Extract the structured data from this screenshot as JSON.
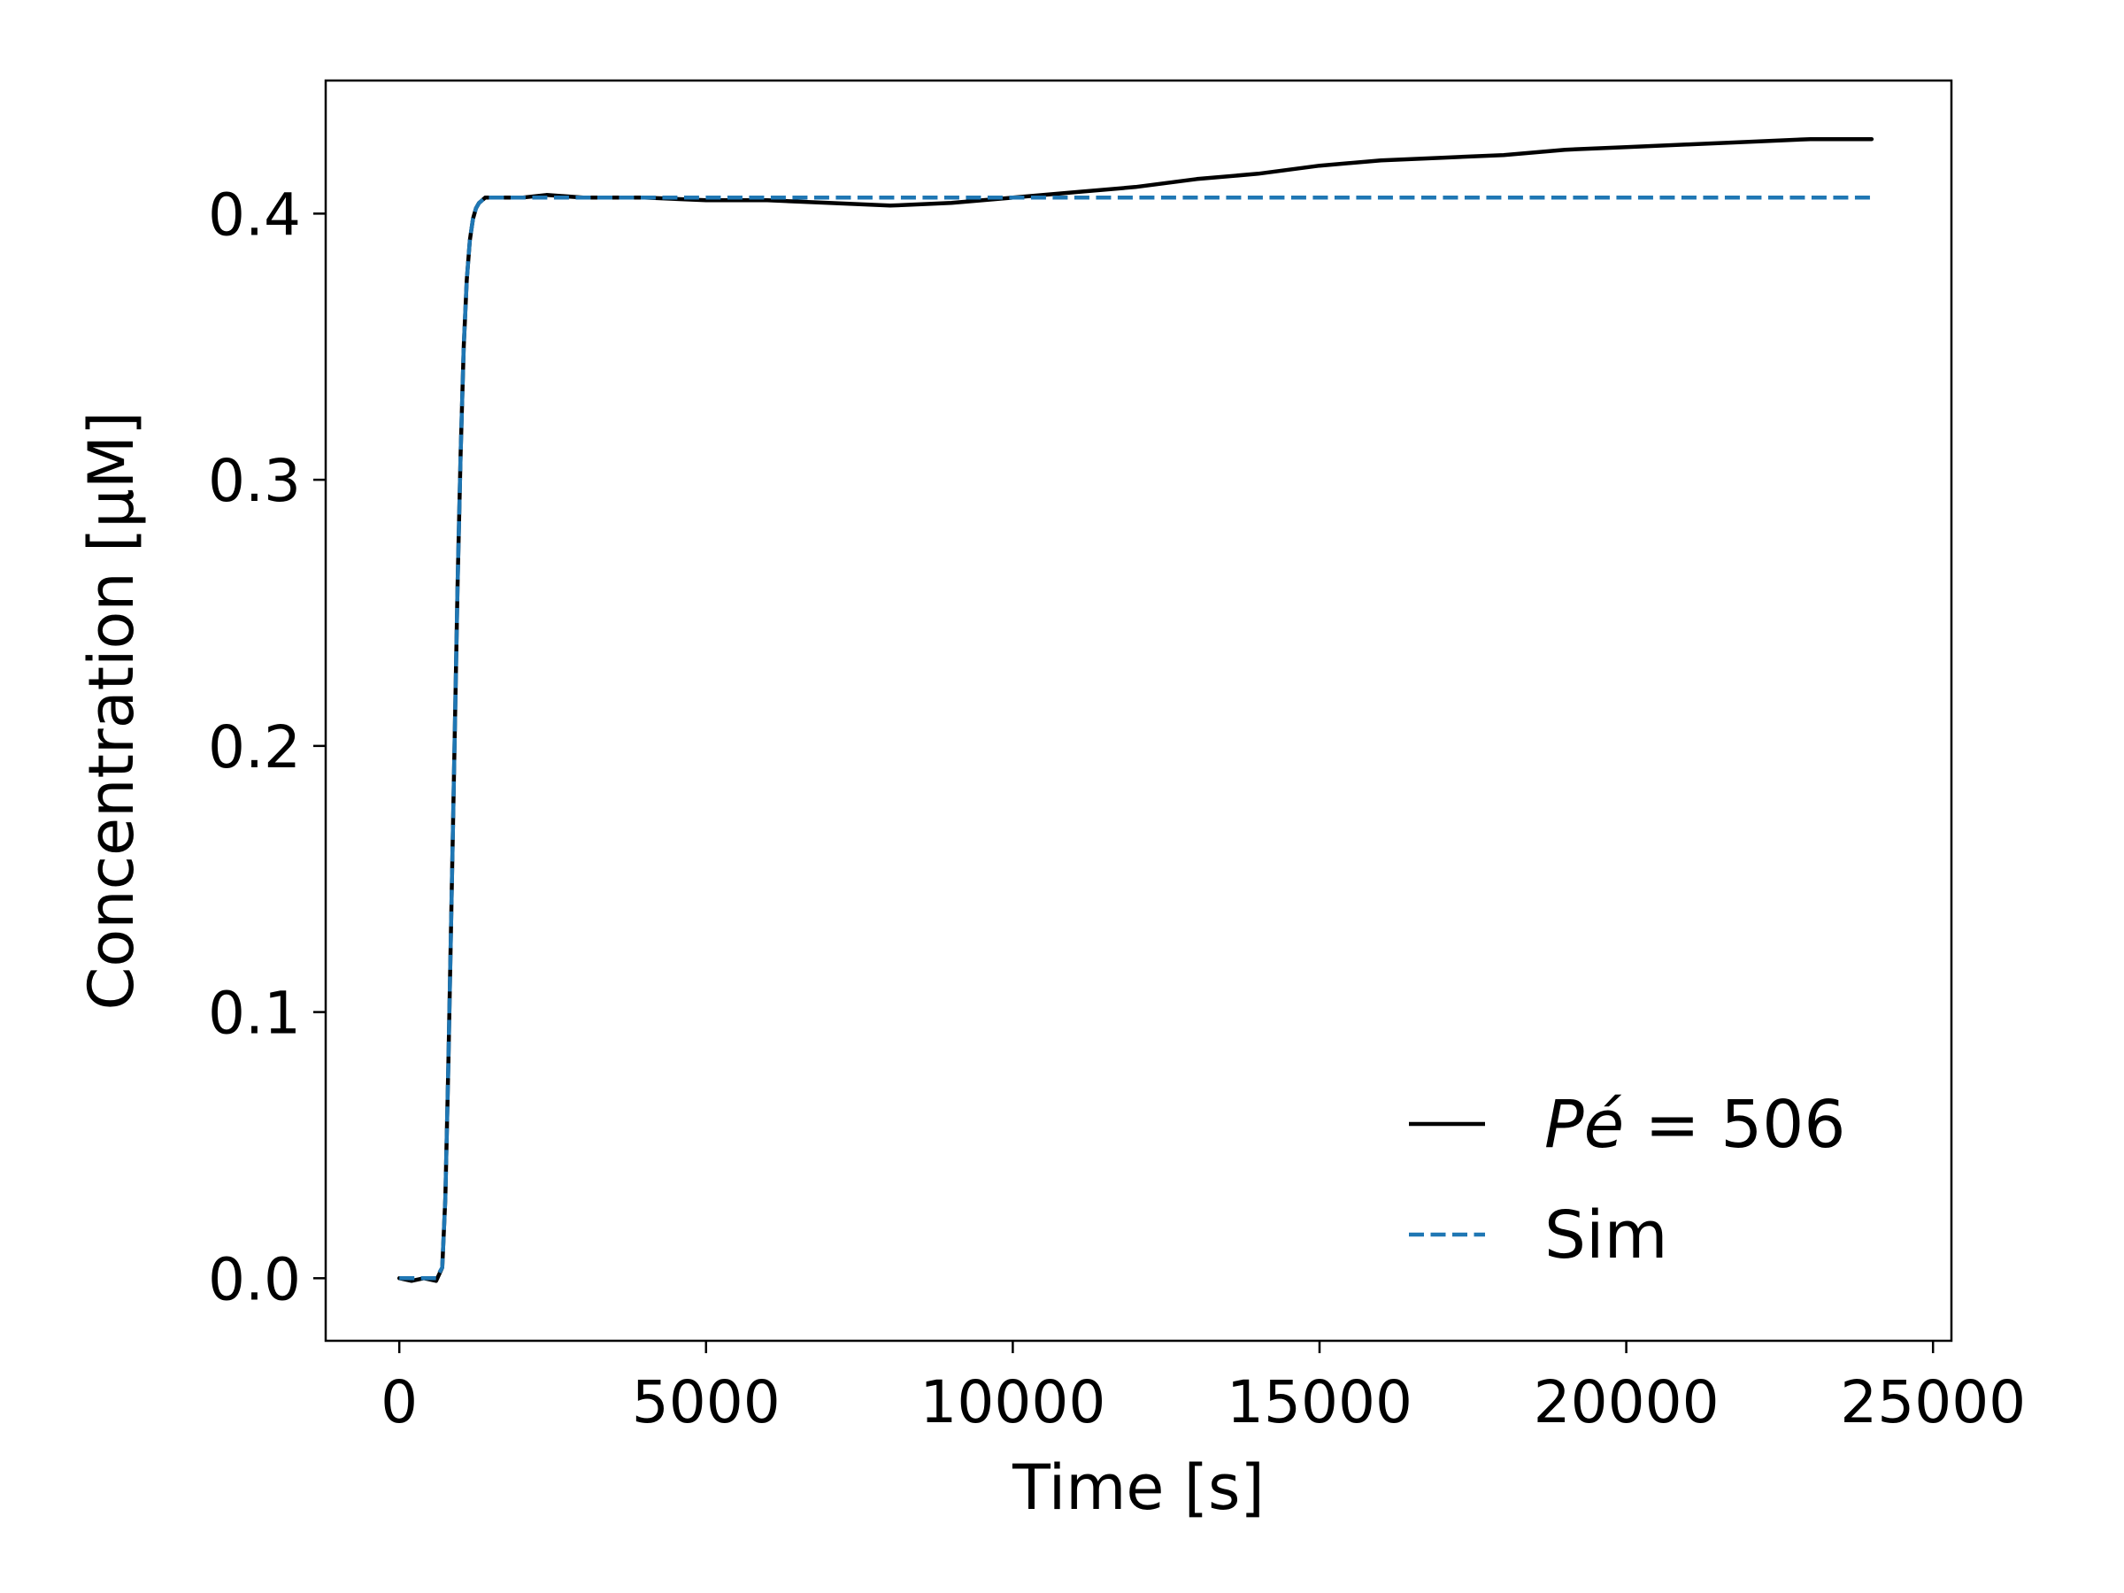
{
  "chart_data": {
    "type": "line",
    "title": "",
    "xlabel": "Time [s]",
    "ylabel": "Concentration [μM]",
    "xlim": [
      -1200,
      25300
    ],
    "ylim": [
      -0.0235,
      0.45
    ],
    "xticks": [
      0,
      5000,
      10000,
      15000,
      20000,
      25000
    ],
    "xtick_labels": [
      "0",
      "5000",
      "10000",
      "15000",
      "20000",
      "25000"
    ],
    "yticks": [
      0.0,
      0.1,
      0.2,
      0.3,
      0.4
    ],
    "ytick_labels": [
      "0.0",
      "0.1",
      "0.2",
      "0.3",
      "0.4"
    ],
    "grid": false,
    "legend_position": "lower-right",
    "series": [
      {
        "name": "Pé = 506",
        "legend_prefix": "Pé",
        "legend_suffix": " = 506",
        "style": "solid",
        "color": "#000000",
        "x": [
          0,
          200,
          400,
          600,
          700,
          750,
          800,
          850,
          900,
          950,
          1000,
          1050,
          1100,
          1150,
          1200,
          1250,
          1300,
          1350,
          1400,
          1500,
          1600,
          1800,
          2000,
          2400,
          3000,
          4000,
          5000,
          6000,
          7000,
          8000,
          9000,
          10000,
          11000,
          12000,
          13000,
          14000,
          15000,
          16000,
          17000,
          18000,
          19000,
          20000,
          21000,
          22000,
          23000,
          24000
        ],
        "y": [
          0.0,
          -0.001,
          0.0,
          -0.001,
          0.004,
          0.03,
          0.08,
          0.14,
          0.2,
          0.26,
          0.31,
          0.35,
          0.375,
          0.39,
          0.398,
          0.402,
          0.404,
          0.405,
          0.406,
          0.406,
          0.406,
          0.406,
          0.406,
          0.407,
          0.406,
          0.406,
          0.405,
          0.405,
          0.404,
          0.403,
          0.404,
          0.406,
          0.408,
          0.41,
          0.413,
          0.415,
          0.418,
          0.42,
          0.421,
          0.422,
          0.424,
          0.425,
          0.426,
          0.427,
          0.428,
          0.428
        ]
      },
      {
        "name": "Sim",
        "style": "dashed",
        "color": "#1f77b4",
        "x": [
          0,
          200,
          400,
          600,
          700,
          750,
          800,
          850,
          900,
          950,
          1000,
          1050,
          1100,
          1150,
          1200,
          1250,
          1300,
          1350,
          1400,
          1500,
          1600,
          1800,
          2000,
          3000,
          5000,
          10000,
          15000,
          20000,
          24000
        ],
        "y": [
          0.0,
          0.0,
          0.0,
          0.0,
          0.004,
          0.03,
          0.08,
          0.14,
          0.2,
          0.26,
          0.31,
          0.35,
          0.375,
          0.39,
          0.398,
          0.402,
          0.404,
          0.405,
          0.406,
          0.406,
          0.406,
          0.406,
          0.406,
          0.406,
          0.406,
          0.406,
          0.406,
          0.406,
          0.406
        ]
      }
    ]
  }
}
